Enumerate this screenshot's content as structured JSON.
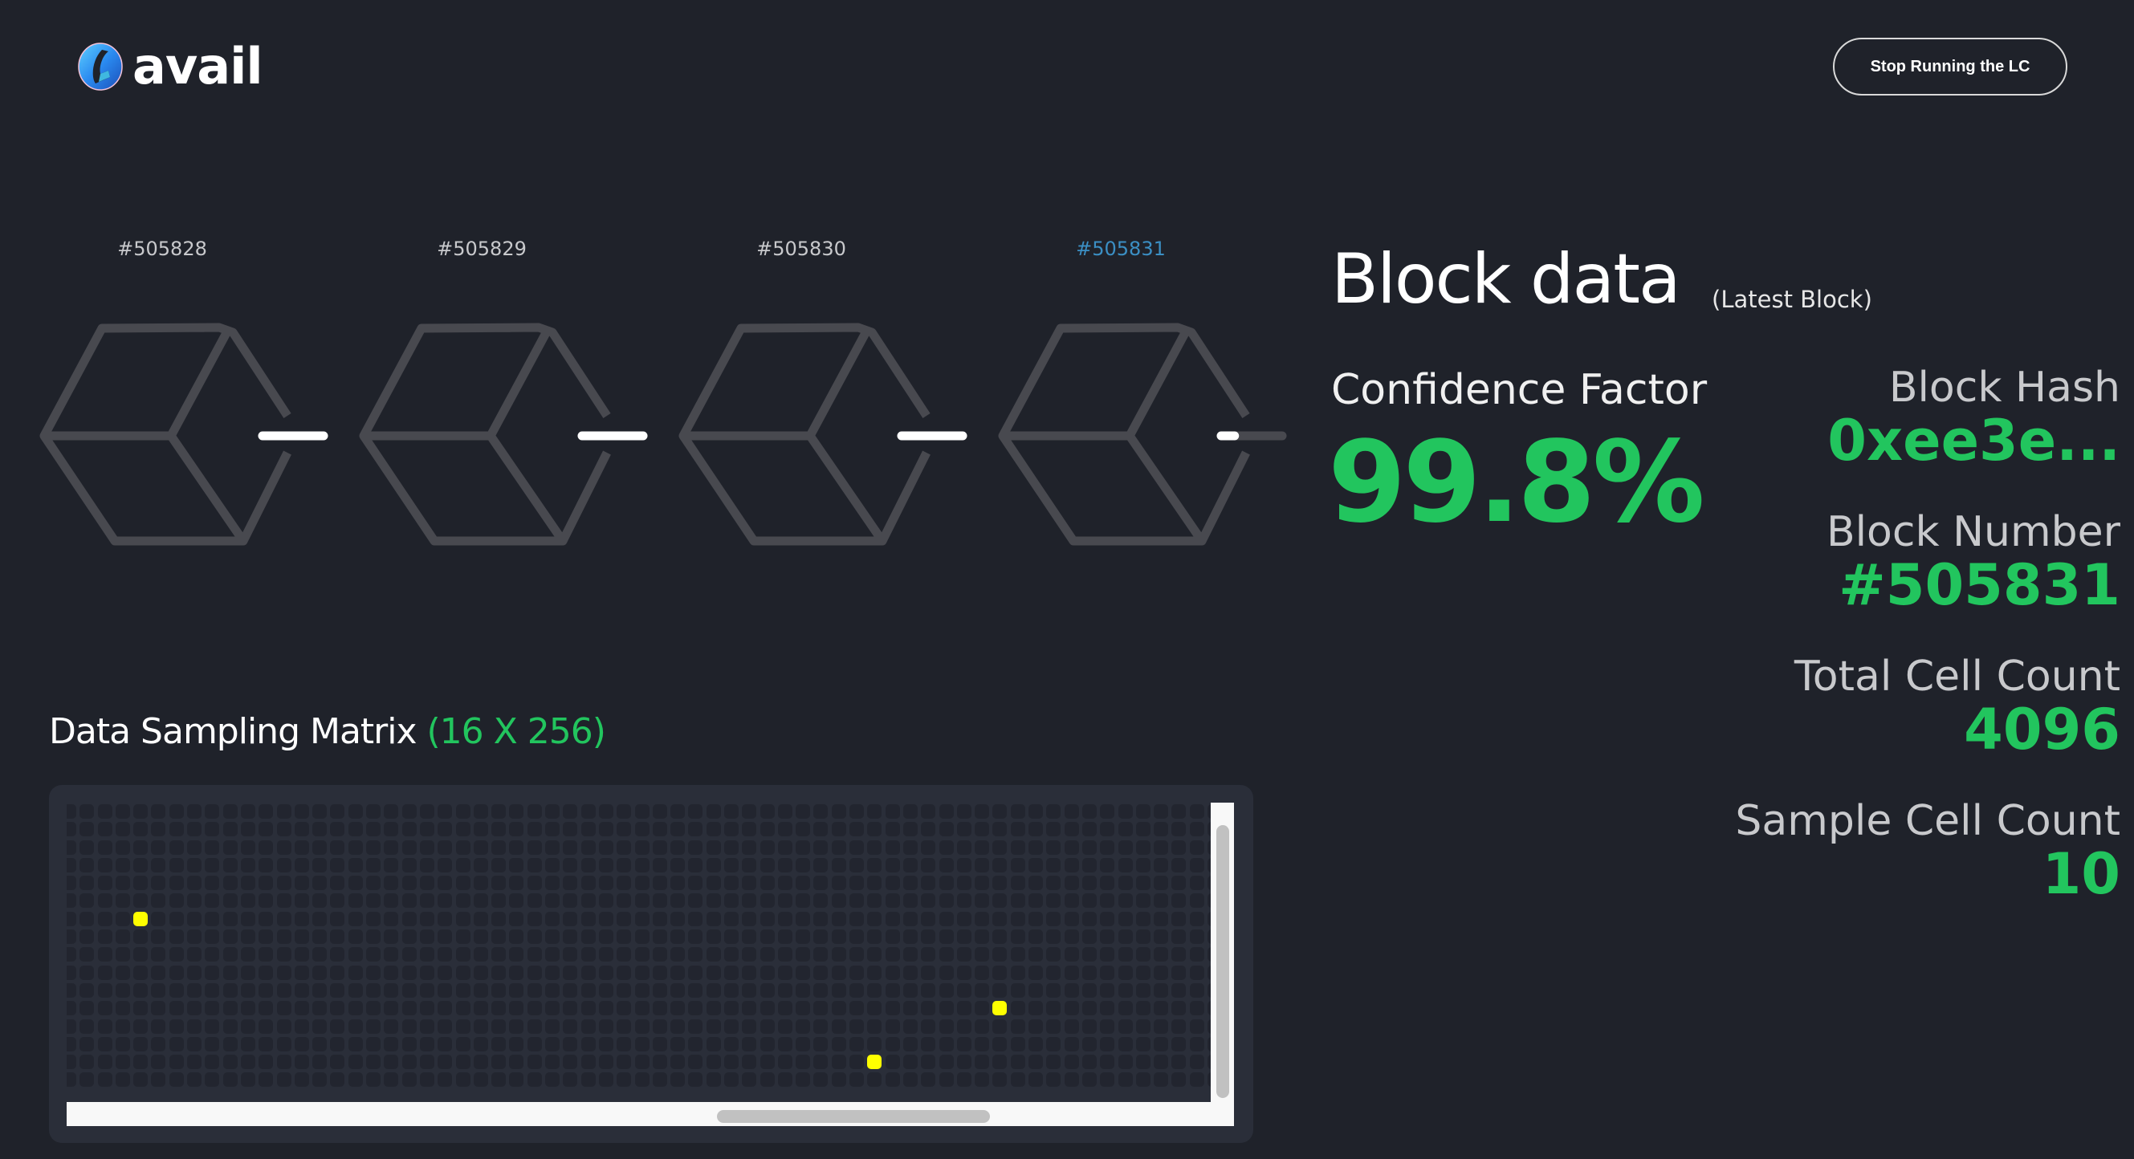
{
  "header": {
    "logo_text": "avail",
    "stop_button_label": "Stop Running the LC"
  },
  "blocks": [
    {
      "label": "#505828",
      "current": false,
      "connector_progress": 1.0
    },
    {
      "label": "#505829",
      "current": false,
      "connector_progress": 1.0
    },
    {
      "label": "#505830",
      "current": false,
      "connector_progress": 1.0
    },
    {
      "label": "#505831",
      "current": true,
      "connector_progress": 0.22
    }
  ],
  "block_data": {
    "title": "Block data",
    "subtitle": "(Latest Block)",
    "confidence_label": "Confidence Factor",
    "confidence_value": "99.8%",
    "stats": [
      {
        "label": "Block Hash",
        "value": "0xee3e..."
      },
      {
        "label": "Block Number",
        "value": "#505831"
      },
      {
        "label": "Total Cell Count",
        "value": "4096"
      },
      {
        "label": "Sample Cell Count",
        "value": "10"
      }
    ]
  },
  "matrix": {
    "title": "Data Sampling Matrix",
    "dimensions": "(16 X 256)",
    "rows": 16,
    "cols": 256,
    "sampled_cells_visible": [
      [
        6,
        4
      ],
      [
        11,
        52
      ],
      [
        14,
        45
      ]
    ]
  },
  "colors": {
    "background": "#1f222a",
    "accent_green": "#22c55e",
    "current_block": "#3b8fc4",
    "sampled_cell": "#ffff00",
    "cell": "#22252f"
  }
}
